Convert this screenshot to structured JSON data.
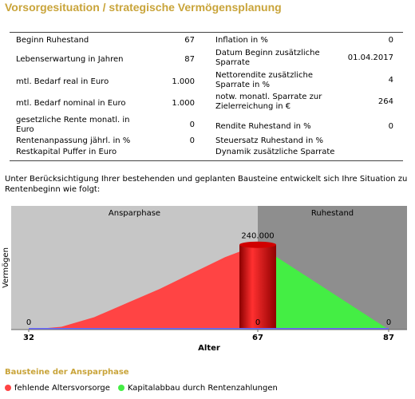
{
  "header": {
    "title": "Vorsorgesituation / strategische Vermögensplanung"
  },
  "table": {
    "left": [
      {
        "label": "Beginn Ruhestand",
        "value": "67"
      },
      {
        "label": "Lebenserwartung in Jahren",
        "value": "87"
      },
      {
        "label": "mtl. Bedarf real in Euro",
        "value": "1.000"
      },
      {
        "label": "mtl. Bedarf nominal in Euro",
        "value": "1.000"
      },
      {
        "label": "gesetzliche Rente monatl. in Euro",
        "value": "0"
      },
      {
        "label": "Rentenanpassung jährl. in %",
        "value": "0"
      },
      {
        "label": "Restkapital Puffer in Euro"
      }
    ],
    "right": [
      {
        "label": "Inflation in %",
        "value": "0"
      },
      {
        "label": "Datum Beginn zusätzliche Sparrate",
        "value": "01.04.2017"
      },
      {
        "label": "Nettorendite zusätzliche Sparrate in %",
        "value": "4"
      },
      {
        "label": "notw. monatl. Sparrate zur Zielerreichung in €",
        "value": "264"
      },
      {
        "label": "Rendite Ruhestand in %",
        "value": "0"
      },
      {
        "label": "Steuersatz Ruhestand in %"
      },
      {
        "label": "Dynamik zusätzliche Sparrate"
      }
    ]
  },
  "intro": "Unter Berücksichtigung Ihrer bestehenden und geplanten Bausteine entwickelt sich Ihre Situation zu Rentenbeginn wie folgt:",
  "chart_data": {
    "type": "area",
    "phases": [
      "Ansparphase",
      "Ruhestand"
    ],
    "xlabel": "Alter",
    "ylabel": "Vermögen",
    "xlim": [
      32,
      87
    ],
    "xticks": [
      32,
      67,
      87
    ],
    "ylim": [
      0,
      350000
    ],
    "series": [
      {
        "name": "fehlende Altersvorsorge",
        "color": "#ff4444",
        "x": [
          32,
          37,
          42,
          47,
          52,
          57,
          62,
          67
        ],
        "values": [
          0,
          8000,
          35000,
          75000,
          115000,
          160000,
          205000,
          240000
        ]
      },
      {
        "name": "Kapitalabbau durch Rentenzahlungen",
        "color": "#44ee44",
        "x": [
          67,
          87
        ],
        "values": [
          240000,
          0
        ]
      },
      {
        "color": "#6a6aff",
        "x": [
          32,
          67,
          87
        ],
        "values": [
          0,
          0,
          0
        ],
        "value_labels": [
          "0",
          "0",
          "0"
        ]
      }
    ],
    "bar": {
      "x": 67,
      "values": [
        240000
      ],
      "value_labels": [
        "240.000"
      ],
      "color": "#d00000"
    }
  },
  "section_title": "Bausteine der Ansparphase"
}
